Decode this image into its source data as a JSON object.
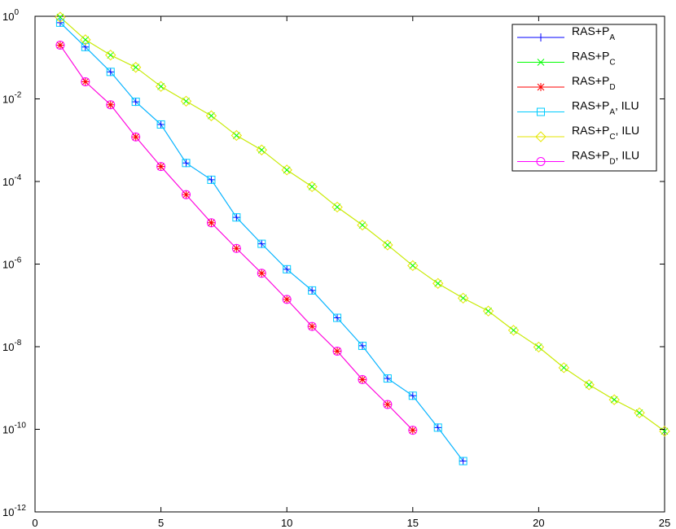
{
  "chart_data": {
    "type": "line",
    "title": "",
    "xlabel": "",
    "ylabel": "",
    "xlim": [
      0,
      25
    ],
    "ylim": [
      1e-12,
      1
    ],
    "yscale": "log",
    "grid": false,
    "legend_position": "top-right",
    "x_ticks": [
      "0",
      "5",
      "10",
      "15",
      "20",
      "25"
    ],
    "y_ticks": [
      {
        "base": "10",
        "exp": "0"
      },
      {
        "base": "10",
        "exp": "-2"
      },
      {
        "base": "10",
        "exp": "-4"
      },
      {
        "base": "10",
        "exp": "-6"
      },
      {
        "base": "10",
        "exp": "-8"
      },
      {
        "base": "10",
        "exp": "-10"
      },
      {
        "base": "10",
        "exp": "-12"
      }
    ],
    "series": [
      {
        "name": "RAS+P_A",
        "label_main": "RAS+P",
        "label_sub": "A",
        "label_suffix": "",
        "color": "#0000ff",
        "marker": "plus",
        "x": [
          1,
          2,
          3,
          4,
          5,
          6,
          7,
          8,
          9,
          10,
          11,
          12,
          13,
          14,
          15,
          16,
          17
        ],
        "y": [
          0.7,
          0.18,
          0.045,
          0.0085,
          0.0024,
          0.00028,
          0.00011,
          1.35e-05,
          3.1e-06,
          7.5e-07,
          2.3e-07,
          5e-08,
          1.05e-08,
          1.7e-09,
          6.5e-10,
          1.1e-10,
          1.7e-11
        ]
      },
      {
        "name": "RAS+P_C",
        "label_main": "RAS+P",
        "label_sub": "C",
        "label_suffix": "",
        "color": "#00ff00",
        "marker": "x",
        "x": [
          1,
          2,
          3,
          4,
          5,
          6,
          7,
          8,
          9,
          10,
          11,
          12,
          13,
          14,
          15,
          16,
          17,
          18,
          19,
          20,
          21,
          22,
          23,
          24,
          25
        ],
        "y": [
          0.95,
          0.27,
          0.115,
          0.058,
          0.02,
          0.0088,
          0.0039,
          0.0013,
          0.00058,
          0.00019,
          7.5e-05,
          2.4e-05,
          8.8e-06,
          2.9e-06,
          9.2e-07,
          3.4e-07,
          1.5e-07,
          7.3e-08,
          2.5e-08,
          9.8e-09,
          3.1e-09,
          1.2e-09,
          5.2e-10,
          2.5e-10,
          9e-11
        ]
      },
      {
        "name": "RAS+P_D",
        "label_main": "RAS+P",
        "label_sub": "D",
        "label_suffix": "",
        "color": "#ff0000",
        "marker": "star",
        "x": [
          1,
          2,
          3,
          4,
          5,
          6,
          7,
          8,
          9,
          10,
          11,
          12,
          13,
          14,
          15
        ],
        "y": [
          0.2,
          0.026,
          0.0072,
          0.0012,
          0.00023,
          4.8e-05,
          1e-05,
          2.4e-06,
          6e-07,
          1.4e-07,
          3.1e-08,
          7.8e-09,
          1.6e-09,
          4e-10,
          9.5e-11
        ]
      },
      {
        "name": "RAS+P_A, ILU",
        "label_main": "RAS+P",
        "label_sub": "A",
        "label_suffix": ", ILU",
        "color": "#00ccff",
        "marker": "square",
        "x": [
          1,
          2,
          3,
          4,
          5,
          6,
          7,
          8,
          9,
          10,
          11,
          12,
          13,
          14,
          15,
          16,
          17
        ],
        "y": [
          0.7,
          0.18,
          0.045,
          0.0085,
          0.0024,
          0.00028,
          0.00011,
          1.35e-05,
          3.1e-06,
          7.5e-07,
          2.3e-07,
          5e-08,
          1.05e-08,
          1.7e-09,
          6.5e-10,
          1.1e-10,
          1.7e-11
        ]
      },
      {
        "name": "RAS+P_C, ILU",
        "label_main": "RAS+P",
        "label_sub": "C",
        "label_suffix": ", ILU",
        "color": "#e6e600",
        "marker": "diamond",
        "x": [
          1,
          2,
          3,
          4,
          5,
          6,
          7,
          8,
          9,
          10,
          11,
          12,
          13,
          14,
          15,
          16,
          17,
          18,
          19,
          20,
          21,
          22,
          23,
          24,
          25
        ],
        "y": [
          0.95,
          0.27,
          0.115,
          0.058,
          0.02,
          0.0088,
          0.0039,
          0.0013,
          0.00058,
          0.00019,
          7.5e-05,
          2.4e-05,
          8.8e-06,
          2.9e-06,
          9.2e-07,
          3.4e-07,
          1.5e-07,
          7.3e-08,
          2.5e-08,
          9.8e-09,
          3.1e-09,
          1.2e-09,
          5.2e-10,
          2.5e-10,
          9e-11
        ]
      },
      {
        "name": "RAS+P_D, ILU",
        "label_main": "RAS+P",
        "label_sub": "D",
        "label_suffix": ", ILU",
        "color": "#ff00ff",
        "marker": "circle",
        "x": [
          1,
          2,
          3,
          4,
          5,
          6,
          7,
          8,
          9,
          10,
          11,
          12,
          13,
          14,
          15
        ],
        "y": [
          0.2,
          0.026,
          0.0072,
          0.0012,
          0.00023,
          4.8e-05,
          1e-05,
          2.4e-06,
          6e-07,
          1.4e-07,
          3.1e-08,
          7.8e-09,
          1.6e-09,
          4e-10,
          9.5e-11
        ]
      }
    ]
  }
}
